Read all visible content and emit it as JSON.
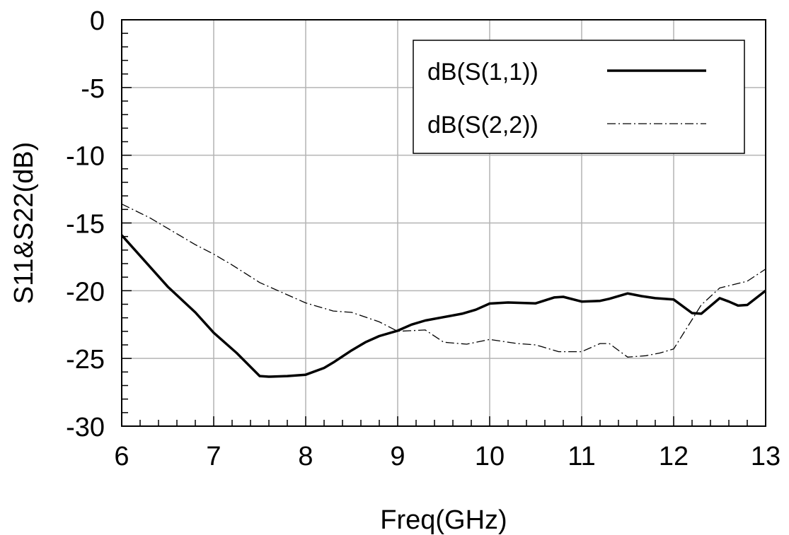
{
  "chart_data": {
    "type": "line",
    "xlabel": "Freq(GHz)",
    "ylabel": "S11&S22(dB)",
    "xlim": [
      6,
      13
    ],
    "ylim": [
      -30,
      0
    ],
    "x_ticks": [
      "6",
      "7",
      "8",
      "9",
      "10",
      "11",
      "12",
      "13"
    ],
    "y_ticks": [
      "0",
      "-5",
      "-10",
      "-15",
      "-20",
      "-25",
      "-30"
    ],
    "grid": true,
    "legend_position": "top-right",
    "series": [
      {
        "name": "dB(S(1,1))",
        "style": "solid",
        "color": "#000000",
        "points": [
          [
            6.0,
            -15.9
          ],
          [
            6.25,
            -17.8
          ],
          [
            6.5,
            -19.7
          ],
          [
            6.8,
            -21.6
          ],
          [
            7.0,
            -23.1
          ],
          [
            7.25,
            -24.6
          ],
          [
            7.5,
            -26.3
          ],
          [
            7.6,
            -26.35
          ],
          [
            7.8,
            -26.3
          ],
          [
            8.0,
            -26.2
          ],
          [
            8.2,
            -25.7
          ],
          [
            8.3,
            -25.3
          ],
          [
            8.5,
            -24.4
          ],
          [
            8.65,
            -23.8
          ],
          [
            8.8,
            -23.35
          ],
          [
            9.0,
            -22.95
          ],
          [
            9.15,
            -22.5
          ],
          [
            9.3,
            -22.2
          ],
          [
            9.5,
            -21.95
          ],
          [
            9.7,
            -21.7
          ],
          [
            9.85,
            -21.4
          ],
          [
            10.0,
            -20.95
          ],
          [
            10.2,
            -20.87
          ],
          [
            10.5,
            -20.93
          ],
          [
            10.7,
            -20.5
          ],
          [
            10.8,
            -20.45
          ],
          [
            11.0,
            -20.8
          ],
          [
            11.2,
            -20.75
          ],
          [
            11.3,
            -20.6
          ],
          [
            11.5,
            -20.2
          ],
          [
            11.65,
            -20.4
          ],
          [
            11.8,
            -20.55
          ],
          [
            12.0,
            -20.65
          ],
          [
            12.2,
            -21.65
          ],
          [
            12.3,
            -21.7
          ],
          [
            12.5,
            -20.55
          ],
          [
            12.6,
            -20.8
          ],
          [
            12.7,
            -21.1
          ],
          [
            12.8,
            -21.05
          ],
          [
            13.0,
            -20.0
          ]
        ]
      },
      {
        "name": "dB(S(2,2))",
        "style": "dash-dot",
        "color": "#000000",
        "points": [
          [
            6.0,
            -13.6
          ],
          [
            6.3,
            -14.6
          ],
          [
            6.6,
            -15.8
          ],
          [
            6.8,
            -16.6
          ],
          [
            7.0,
            -17.3
          ],
          [
            7.2,
            -18.1
          ],
          [
            7.5,
            -19.4
          ],
          [
            7.8,
            -20.3
          ],
          [
            8.0,
            -20.9
          ],
          [
            8.3,
            -21.5
          ],
          [
            8.5,
            -21.6
          ],
          [
            8.8,
            -22.3
          ],
          [
            9.0,
            -23.0
          ],
          [
            9.3,
            -22.9
          ],
          [
            9.5,
            -23.8
          ],
          [
            9.75,
            -23.95
          ],
          [
            10.0,
            -23.6
          ],
          [
            10.3,
            -23.9
          ],
          [
            10.5,
            -24.0
          ],
          [
            10.75,
            -24.5
          ],
          [
            11.0,
            -24.5
          ],
          [
            11.2,
            -23.9
          ],
          [
            11.3,
            -23.9
          ],
          [
            11.5,
            -24.9
          ],
          [
            11.7,
            -24.8
          ],
          [
            11.85,
            -24.6
          ],
          [
            12.0,
            -24.3
          ],
          [
            12.3,
            -21.05
          ],
          [
            12.5,
            -19.8
          ],
          [
            12.8,
            -19.3
          ],
          [
            13.0,
            -18.4
          ]
        ]
      }
    ]
  }
}
